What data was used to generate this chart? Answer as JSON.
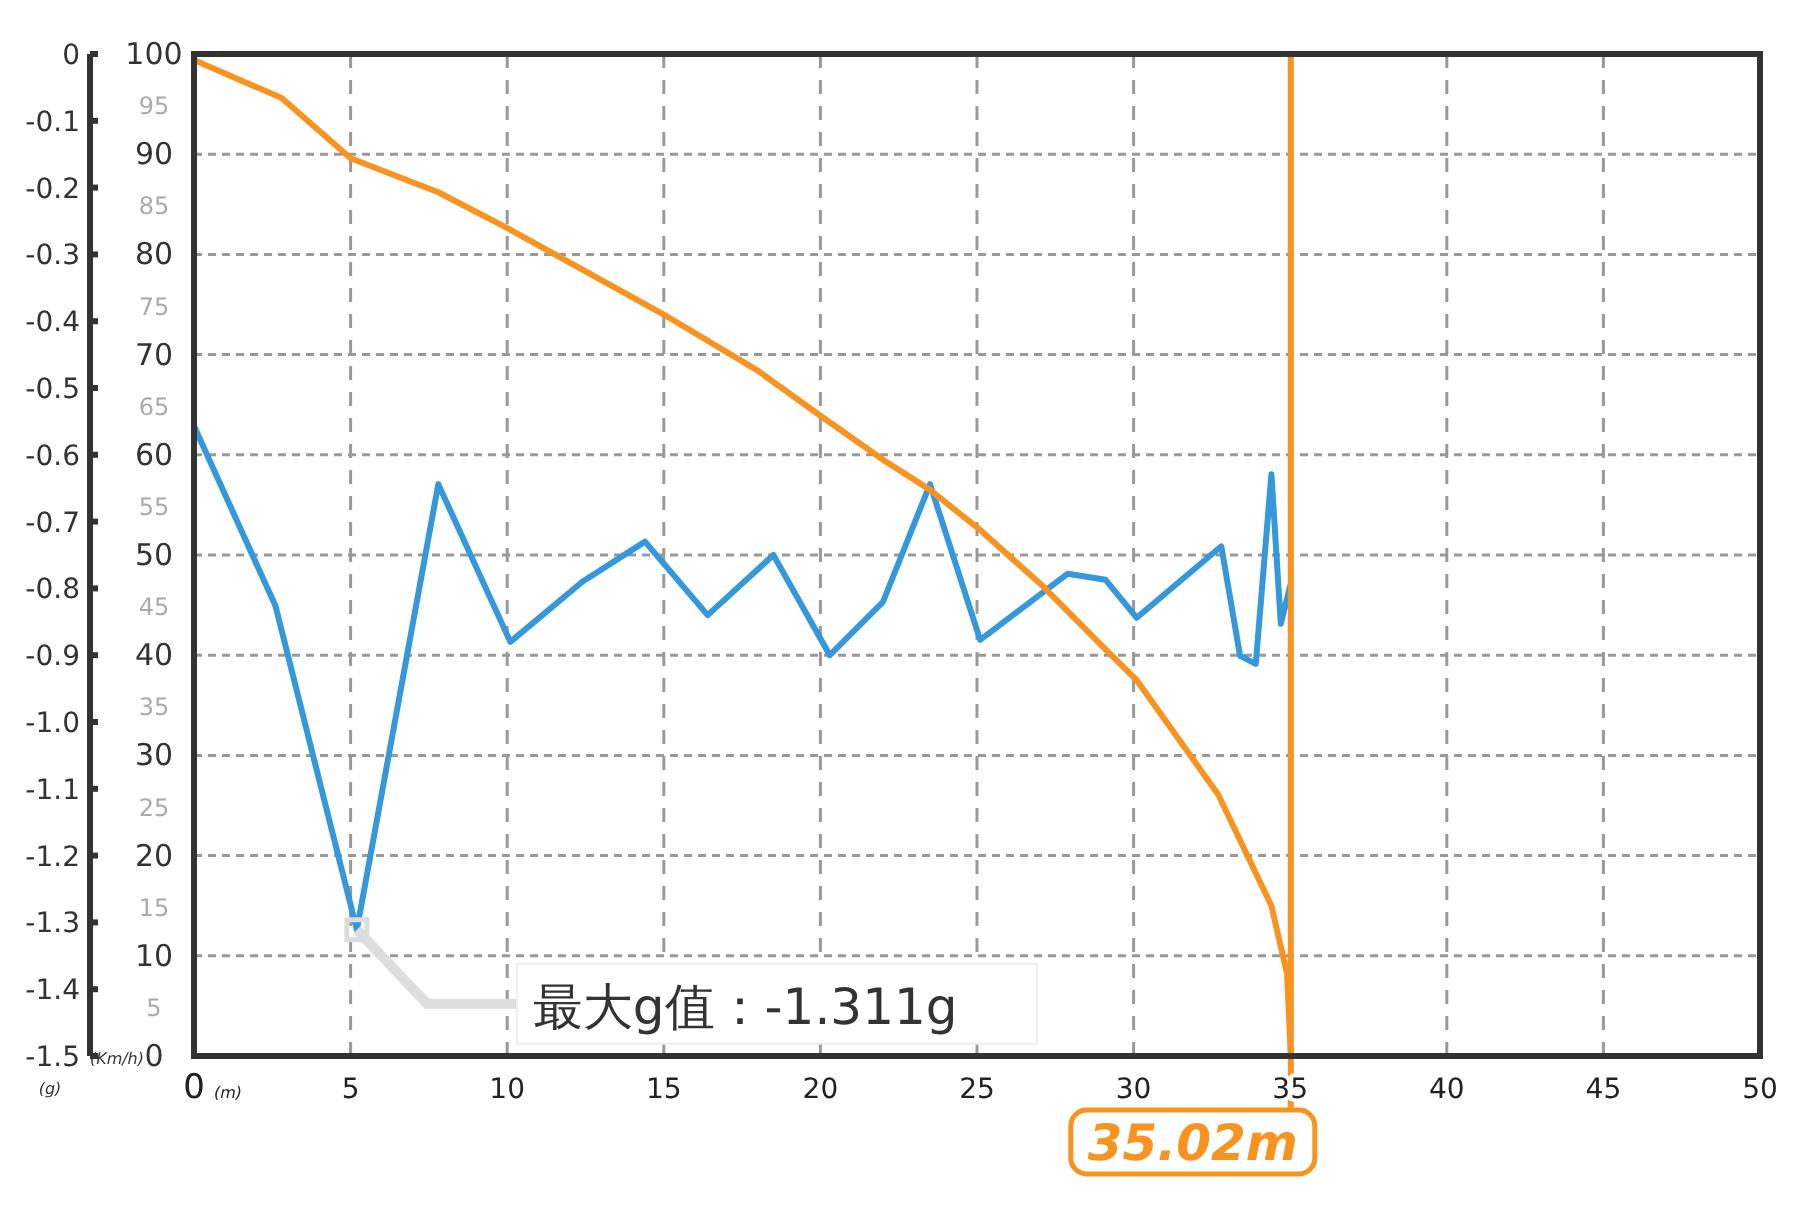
{
  "chart_data": {
    "type": "line",
    "xlabel": "(m)",
    "ylabel": "(g)",
    "y2label": "(Km/h)",
    "xlim": [
      0,
      50
    ],
    "xticks": [
      0,
      5,
      10,
      15,
      20,
      25,
      30,
      35,
      40,
      45,
      50
    ],
    "ylim": [
      -1.5,
      0
    ],
    "yticks": [
      -1.5,
      -1.4,
      -1.3,
      -1.2,
      -1.1,
      {
        "value": -1,
        "label": "-1.0"
      },
      -0.9,
      -0.8,
      -0.7,
      -0.6,
      -0.5,
      -0.4,
      -0.3,
      -0.2,
      -0.1,
      0
    ],
    "y2lim": [
      0,
      100
    ],
    "y2ticks": [
      0,
      {
        "value": 5,
        "label": "5"
      },
      10,
      {
        "value": 15,
        "label": "15"
      },
      20,
      {
        "value": 25,
        "label": "25"
      },
      30,
      {
        "value": 35,
        "label": "35"
      },
      40,
      {
        "value": 45,
        "label": "45"
      },
      50,
      {
        "value": 55,
        "label": "55"
      },
      60,
      {
        "value": 65,
        "label": "65"
      },
      70,
      {
        "value": 75,
        "label": "75"
      },
      80,
      {
        "value": 85,
        "label": "85"
      },
      90,
      {
        "value": 95,
        "label": "95"
      },
      100
    ],
    "grid": true,
    "marker": "none",
    "line_style": "solid",
    "series": [
      {
        "color": "#3498db",
        "x": [
          0,
          2.6,
          5.2,
          7.8,
          10.1,
          12.4,
          14.4,
          16.4,
          18.5,
          20.3,
          22.0,
          23.5,
          25.1,
          27.9,
          29.1,
          30.1,
          32.8,
          33.4,
          33.9,
          34.4,
          34.7,
          35.0
        ],
        "values": [
          -0.557,
          -0.826,
          -1.311,
          -0.644,
          -0.88,
          -0.79,
          -0.73,
          -0.84,
          -0.75,
          -0.9,
          -0.82,
          -0.644,
          -0.877,
          -0.778,
          -0.787,
          -0.844,
          -0.737,
          -0.901,
          -0.913,
          -0.629,
          -0.853,
          -0.796
        ]
      },
      {
        "color": "#f7931e",
        "axis": "y2",
        "x": [
          0,
          2.8,
          5.0,
          7.8,
          9.9,
          15.0,
          18.0,
          20.0,
          22.0,
          23.5,
          25.1,
          27.1,
          29.0,
          30.1,
          32.7,
          34.4,
          34.9,
          35.02
        ],
        "values": [
          99.4,
          95.6,
          89.6,
          86.2,
          82.8,
          74.0,
          68.4,
          63.9,
          59.5,
          56.5,
          52.5,
          46.9,
          40.9,
          37.5,
          26.1,
          15.0,
          8.2,
          0
        ]
      }
    ],
    "ref_lines": [
      {
        "axis": "x",
        "value": 35.02,
        "label": "35.02m",
        "color": "#f7931e"
      }
    ],
    "annotations": [
      {
        "text": "最大g值：-1.311g",
        "x": 5.2,
        "y": -1.311
      }
    ]
  }
}
